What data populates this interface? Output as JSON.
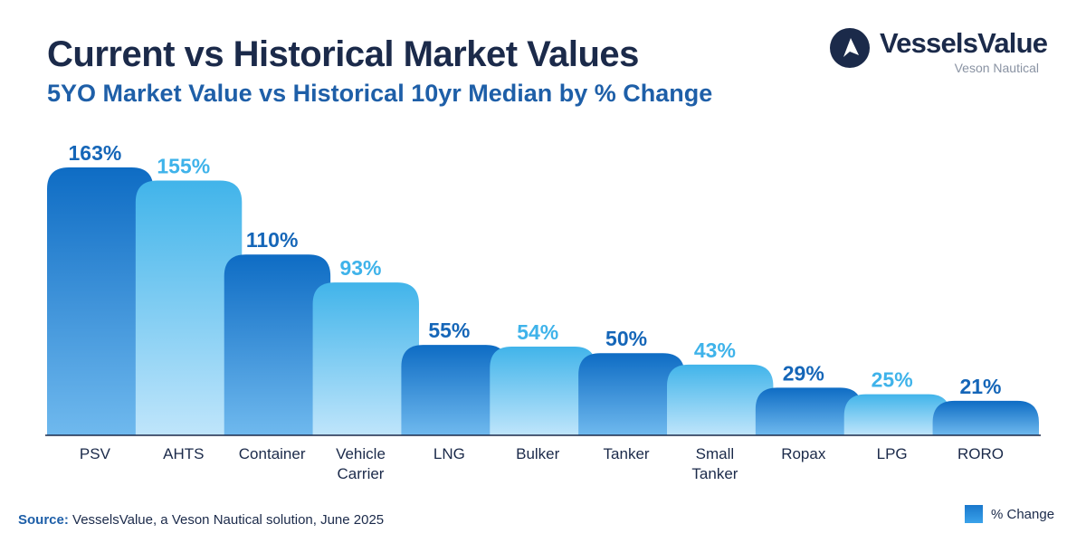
{
  "header": {
    "title": "Current vs Historical Market Values",
    "subtitle": "5YO Market Value vs Historical 10yr Median by % Change"
  },
  "brand": {
    "name": "VesselsValue",
    "tagline": "Veson Nautical"
  },
  "footer": {
    "source_label": "Source:",
    "source_text": "VesselsValue, a Veson Nautical solution, June 2025"
  },
  "legend": {
    "label": "% Change"
  },
  "colors": {
    "dark_bar_top": "#0e6cc4",
    "dark_bar_bottom": "#6fb9ee",
    "light_bar_top": "#41b4ea",
    "light_bar_bottom": "#bfe5fb",
    "dark_label": "#1566b8",
    "light_label": "#3fb3ea",
    "title": "#1b2a4a",
    "subtitle": "#1e5fa8",
    "axis": "#1b2a4a"
  },
  "chart_data": {
    "type": "bar",
    "title": "Current vs Historical Market Values",
    "subtitle": "5YO Market Value vs Historical 10yr Median by % Change",
    "xlabel": "",
    "ylabel": "",
    "ylim": [
      0,
      163
    ],
    "grid": false,
    "legend": "bottom-right",
    "categories": [
      [
        "PSV"
      ],
      [
        "AHTS"
      ],
      [
        "Container"
      ],
      [
        "Vehicle",
        "Carrier"
      ],
      [
        "LNG"
      ],
      [
        "Bulker"
      ],
      [
        "Tanker"
      ],
      [
        "Small",
        "Tanker"
      ],
      [
        "Ropax"
      ],
      [
        "LPG"
      ],
      [
        "RORO"
      ]
    ],
    "series": [
      {
        "name": "% Change",
        "values": [
          163,
          155,
          110,
          93,
          55,
          54,
          50,
          43,
          29,
          25,
          21
        ],
        "labels": [
          "163%",
          "155%",
          "110%",
          "93%",
          "55%",
          "54%",
          "50%",
          "43%",
          "29%",
          "25%",
          "21%"
        ]
      }
    ]
  }
}
